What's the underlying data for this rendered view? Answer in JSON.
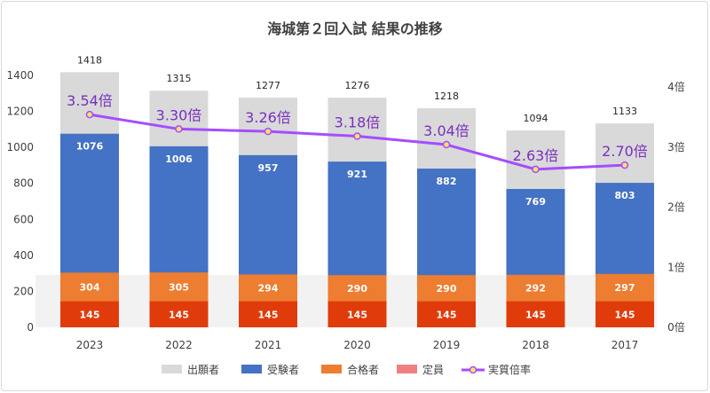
{
  "chart_data": {
    "type": "bar",
    "title": "海城第２回入試 結果の推移",
    "categories": [
      "2023",
      "2022",
      "2021",
      "2020",
      "2019",
      "2018",
      "2017"
    ],
    "series": [
      {
        "name": "出願者",
        "values": [
          1418,
          1315,
          1277,
          1276,
          1218,
          1094,
          1133
        ],
        "color": "#d9d9d9"
      },
      {
        "name": "受験者",
        "values": [
          1076,
          1006,
          957,
          921,
          882,
          769,
          803
        ],
        "color": "#4472c4"
      },
      {
        "name": "合格者",
        "values": [
          304,
          305,
          294,
          290,
          290,
          292,
          297
        ],
        "color": "#ed7d31"
      },
      {
        "name": "定員",
        "values": [
          145,
          145,
          145,
          145,
          145,
          145,
          145
        ],
        "color": "#e03c0b"
      },
      {
        "name": "実質倍率",
        "type": "line",
        "axis": "right",
        "values": [
          3.54,
          3.3,
          3.26,
          3.18,
          3.04,
          2.63,
          2.7
        ],
        "labels": [
          "3.54倍",
          "3.30倍",
          "3.26倍",
          "3.18倍",
          "3.04倍",
          "2.63倍",
          "2.70倍"
        ],
        "color": "#a54dff"
      }
    ],
    "ylim": [
      0,
      1400
    ],
    "yticks": [
      "0",
      "200",
      "400",
      "600",
      "800",
      "1000",
      "1200",
      "1400"
    ],
    "y2lim": [
      0,
      4
    ],
    "y2ticks": [
      "0倍",
      "1倍",
      "2倍",
      "3倍",
      "4倍"
    ],
    "legend_position": "bottom",
    "grid": false
  }
}
